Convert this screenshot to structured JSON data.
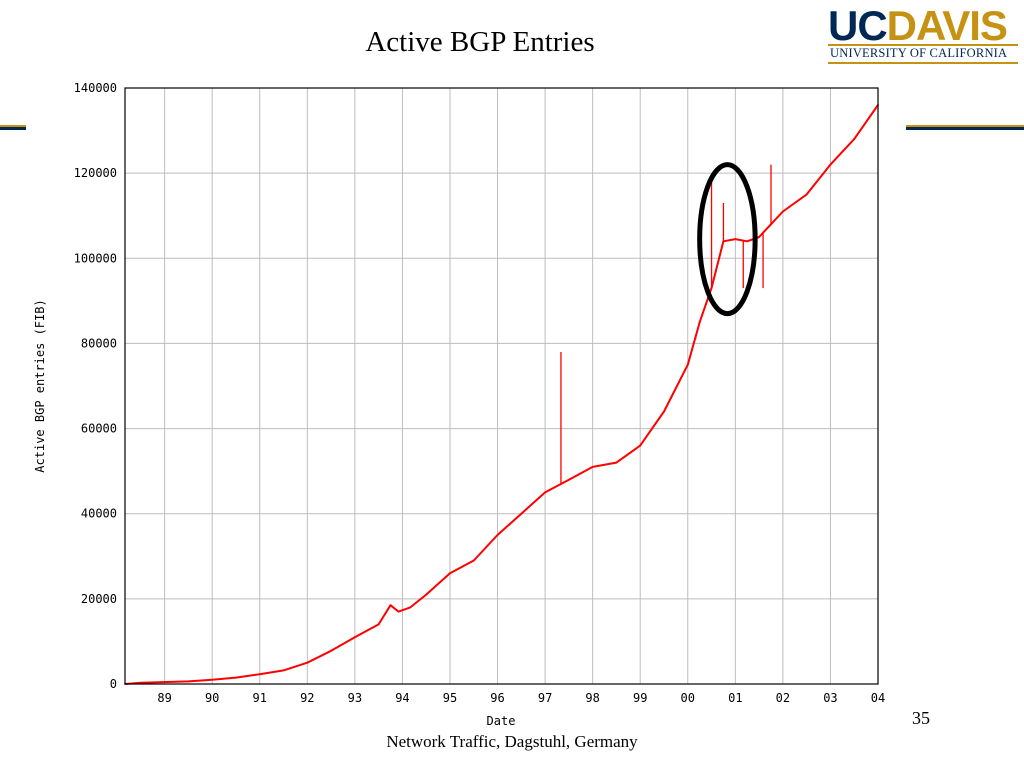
{
  "slide": {
    "title": "Active BGP Entries",
    "footer": "Network Traffic, Dagstuhl, Germany",
    "page_number": "35"
  },
  "logo": {
    "uc": "UC",
    "davis": "DAVIS",
    "subtitle": "UNIVERSITY OF CALIFORNIA",
    "colors": {
      "navy": "#002855",
      "gold": "#c69214"
    }
  },
  "chart_data": {
    "type": "line",
    "title": "",
    "xlabel": "Date",
    "ylabel": "Active BGP entries (FIB)",
    "x_ticks": [
      "89",
      "90",
      "91",
      "92",
      "93",
      "94",
      "95",
      "96",
      "97",
      "98",
      "99",
      "00",
      "01",
      "02",
      "03",
      "04"
    ],
    "y_ticks": [
      "0",
      "20000",
      "40000",
      "60000",
      "80000",
      "100000",
      "120000",
      "140000"
    ],
    "xlim": [
      "1988-09",
      "2004-07"
    ],
    "ylim": [
      0,
      140000
    ],
    "grid": true,
    "series_color": "#ff0000",
    "series": [
      {
        "x": [
          "1988-09",
          "1989-01",
          "1990-01",
          "1990-07",
          "1991-01",
          "1991-07",
          "1992-01",
          "1992-07",
          "1993-01",
          "1993-07",
          "1994-01",
          "1994-04",
          "1994-06",
          "1994-09",
          "1995-01",
          "1995-07",
          "1996-01",
          "1996-07",
          "1997-01",
          "1997-07",
          "1998-01",
          "1998-07",
          "1999-01",
          "1999-07",
          "2000-01",
          "2000-07",
          "2000-10",
          "2001-01",
          "2001-04",
          "2001-07",
          "2001-10",
          "2002-01",
          "2002-07",
          "2003-01",
          "2003-07",
          "2004-01",
          "2004-07"
        ],
        "y": [
          0,
          300,
          600,
          1000,
          1500,
          2300,
          3200,
          5000,
          7800,
          11000,
          14000,
          18500,
          17000,
          18000,
          21000,
          26000,
          29000,
          35000,
          40000,
          45000,
          48000,
          51000,
          52000,
          56000,
          64000,
          75000,
          85000,
          93000,
          104000,
          104500,
          104000,
          105000,
          111000,
          115000,
          122000,
          128000,
          136000
        ]
      }
    ],
    "spikes": [
      {
        "x": "1997-11",
        "y": 78000
      },
      {
        "x": "2000-09",
        "y": 81000
      },
      {
        "x": "2001-01",
        "y": 120000
      },
      {
        "x": "2001-04",
        "y": 113000
      },
      {
        "x": "2001-09",
        "y": 93000
      },
      {
        "x": "2002-02",
        "y": 93000
      },
      {
        "x": "2002-04",
        "y": 122000
      }
    ],
    "annotation": {
      "type": "ellipse",
      "x_center": "2001-05",
      "y_center": 104500,
      "x_half_months": 7,
      "y_half": 17500
    }
  }
}
